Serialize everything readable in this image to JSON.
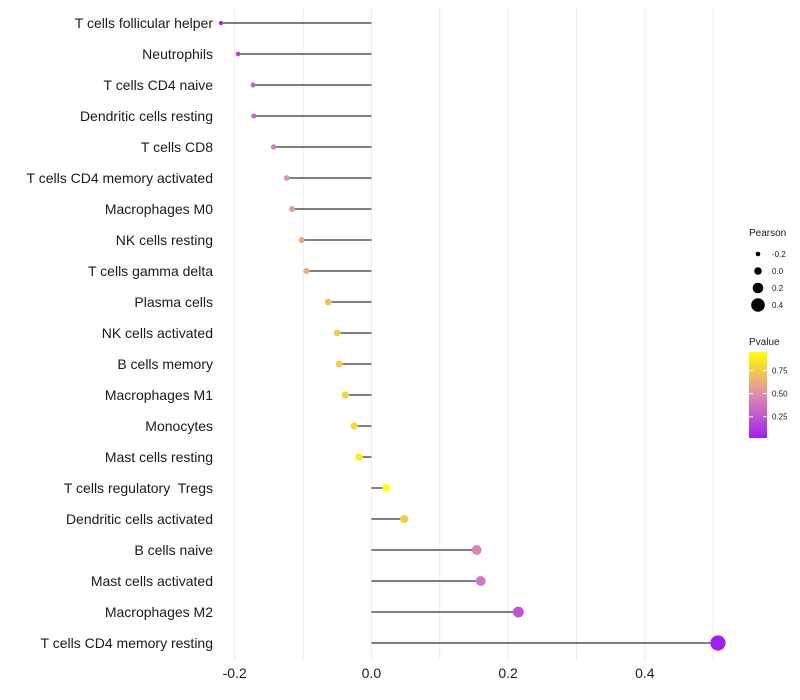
{
  "chart_data": {
    "type": "lollipop",
    "categories": [
      "T cells follicular helper",
      "Neutrophils",
      "T cells CD4 naive",
      "Dendritic cells resting",
      "T cells CD8",
      "T cells CD4 memory activated",
      "Macrophages M0",
      "NK cells resting",
      "T cells gamma delta",
      "Plasma cells",
      "NK cells activated",
      "B cells memory",
      "Macrophages M1",
      "Monocytes",
      "Mast cells resting",
      "T cells regulatory  Tregs",
      "Dendritic cells activated",
      "B cells naive",
      "Mast cells activated",
      "Macrophages M2",
      "T cells CD4 memory resting"
    ],
    "values": [
      -0.22,
      -0.195,
      -0.173,
      -0.172,
      -0.143,
      -0.124,
      -0.116,
      -0.102,
      -0.095,
      -0.063,
      -0.05,
      -0.047,
      -0.038,
      -0.025,
      -0.018,
      0.022,
      0.048,
      0.154,
      0.16,
      0.215,
      0.507
    ],
    "pvalues": [
      0.04,
      0.15,
      0.3,
      0.32,
      0.42,
      0.53,
      0.55,
      0.6,
      0.63,
      0.7,
      0.73,
      0.74,
      0.77,
      0.82,
      0.88,
      0.95,
      0.75,
      0.45,
      0.4,
      0.25,
      0.02
    ],
    "xlim": [
      -0.22,
      0.51
    ],
    "xticks": [
      -0.2,
      0.0,
      0.2,
      0.4
    ],
    "xtick_labels": [
      "-0.2",
      "0.0",
      "0.2",
      "0.4"
    ],
    "title": "",
    "xlabel": "",
    "ylabel": "",
    "legend_size": {
      "title": "Pearson",
      "values": [
        -0.2,
        0.0,
        0.2,
        0.4
      ],
      "labels": [
        "-0.2",
        "0.0",
        "0.2",
        "0.4"
      ]
    },
    "legend_color": {
      "title": "Pvalue",
      "ticks": [
        0.25,
        0.5,
        0.75
      ],
      "tick_labels": [
        "0.25",
        "0.50",
        "0.75"
      ],
      "range": [
        0.02,
        0.95
      ],
      "low_color": "#a020f0",
      "mid_color": "#e08ab0",
      "high_color": "#ffff00"
    },
    "stem_color": "#000000",
    "grid_color": "#ebebeb"
  }
}
